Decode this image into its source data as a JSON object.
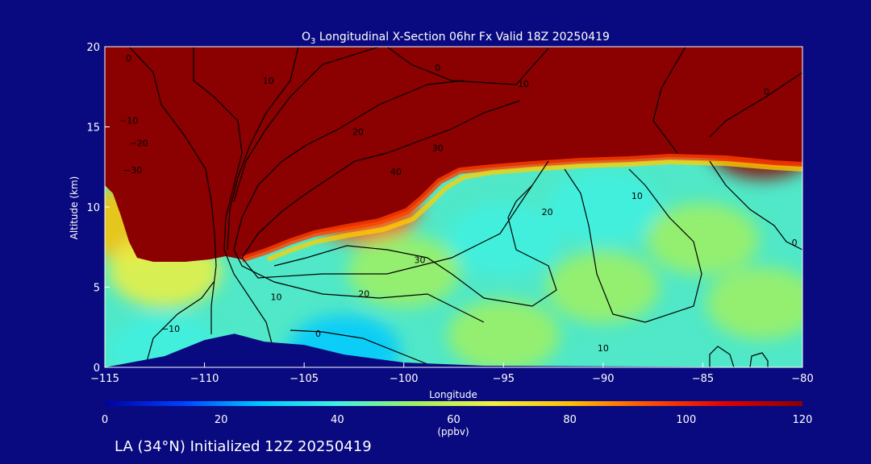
{
  "chart_data": {
    "type": "heatmap",
    "title": "O<sub>3</sub> Longitudinal X-Section 06hr  Fx Valid 18Z 20250419",
    "title_parts": {
      "base": "O",
      "sub": "3",
      "rest": " Longitudinal X-Section 06hr  Fx Valid 18Z 20250419"
    },
    "xlabel": "Longitude",
    "ylabel": "Altitude (km)",
    "xlim": [
      -115,
      -80
    ],
    "ylim": [
      0,
      20
    ],
    "xticks": [
      -115,
      -110,
      -105,
      -100,
      -95,
      -90,
      -85,
      -80
    ],
    "xtick_labels": [
      "−115",
      "−110",
      "−105",
      "−100",
      "−95",
      "−90",
      "−85",
      "−80"
    ],
    "yticks": [
      0,
      5,
      10,
      15,
      20
    ],
    "colorbar": {
      "label": "(ppbv)",
      "range": [
        0,
        120
      ],
      "ticks": [
        0,
        20,
        40,
        60,
        80,
        100,
        120
      ],
      "colors": [
        "#0000a0",
        "#0040ff",
        "#00c8ff",
        "#40f0e0",
        "#a0f060",
        "#f0f040",
        "#ffc000",
        "#ff5000",
        "#e00000",
        "#8b0000"
      ]
    },
    "field_description_points": [
      {
        "lon": -112.5,
        "alt": 17,
        "value": 120
      },
      {
        "lon": -105,
        "alt": 15,
        "value": 120
      },
      {
        "lon": -90,
        "alt": 16,
        "value": 120
      },
      {
        "lon": -82,
        "alt": 14,
        "value": 120
      },
      {
        "lon": -114,
        "alt": 9,
        "value": 85
      },
      {
        "lon": -112,
        "alt": 6,
        "value": 70
      },
      {
        "lon": -102,
        "alt": 10,
        "value": 90
      },
      {
        "lon": -100,
        "alt": 6,
        "value": 55
      },
      {
        "lon": -95,
        "alt": 8,
        "value": 45
      },
      {
        "lon": -90,
        "alt": 10,
        "value": 40
      },
      {
        "lon": -90,
        "alt": 5,
        "value": 55
      },
      {
        "lon": -85,
        "alt": 8,
        "value": 50
      },
      {
        "lon": -82,
        "alt": 4,
        "value": 58
      },
      {
        "lon": -103,
        "alt": 1,
        "value": 25
      },
      {
        "lon": -112,
        "alt": 1,
        "value": 35
      },
      {
        "lon": -95,
        "alt": 2,
        "value": 50
      }
    ],
    "terrain": [
      {
        "lon": -115,
        "alt": 0
      },
      {
        "lon": -112,
        "alt": 0.7
      },
      {
        "lon": -110,
        "alt": 1.7
      },
      {
        "lon": -108.5,
        "alt": 2.1
      },
      {
        "lon": -107,
        "alt": 1.6
      },
      {
        "lon": -105,
        "alt": 1.4
      },
      {
        "lon": -103,
        "alt": 0.8
      },
      {
        "lon": -100,
        "alt": 0.3
      },
      {
        "lon": -96,
        "alt": 0.1
      },
      {
        "lon": -80,
        "alt": 0
      }
    ],
    "contour_labels": [
      {
        "text": "0",
        "lon": -113.8,
        "alt": 19.1
      },
      {
        "text": "10",
        "lon": -106.8,
        "alt": 17.7
      },
      {
        "text": "0",
        "lon": -98.3,
        "alt": 18.5
      },
      {
        "text": "10",
        "lon": -94,
        "alt": 17.5
      },
      {
        "text": "0",
        "lon": -81.8,
        "alt": 17
      },
      {
        "text": "−10",
        "lon": -113.8,
        "alt": 15.2
      },
      {
        "text": "−20",
        "lon": -113.3,
        "alt": 13.8
      },
      {
        "text": "−30",
        "lon": -113.6,
        "alt": 12.1
      },
      {
        "text": "20",
        "lon": -102.3,
        "alt": 14.5
      },
      {
        "text": "30",
        "lon": -98.3,
        "alt": 13.5
      },
      {
        "text": "40",
        "lon": -100.4,
        "alt": 12
      },
      {
        "text": "20",
        "lon": -92.8,
        "alt": 9.5
      },
      {
        "text": "10",
        "lon": -88.3,
        "alt": 10.5
      },
      {
        "text": "0",
        "lon": -80.4,
        "alt": 7.6
      },
      {
        "text": "30",
        "lon": -99.2,
        "alt": 6.5
      },
      {
        "text": "20",
        "lon": -102,
        "alt": 4.4
      },
      {
        "text": "10",
        "lon": -106.4,
        "alt": 4.2
      },
      {
        "text": "0",
        "lon": -104.3,
        "alt": 1.9
      },
      {
        "text": "10",
        "lon": -90,
        "alt": 1
      },
      {
        "text": "−10",
        "lon": -111.7,
        "alt": 2.2
      }
    ]
  },
  "caption": "LA (34°N) Initialized 12Z 20250419",
  "colors": {
    "background": "#0a0a80",
    "text": "#ffffff",
    "contour": "#000000"
  }
}
